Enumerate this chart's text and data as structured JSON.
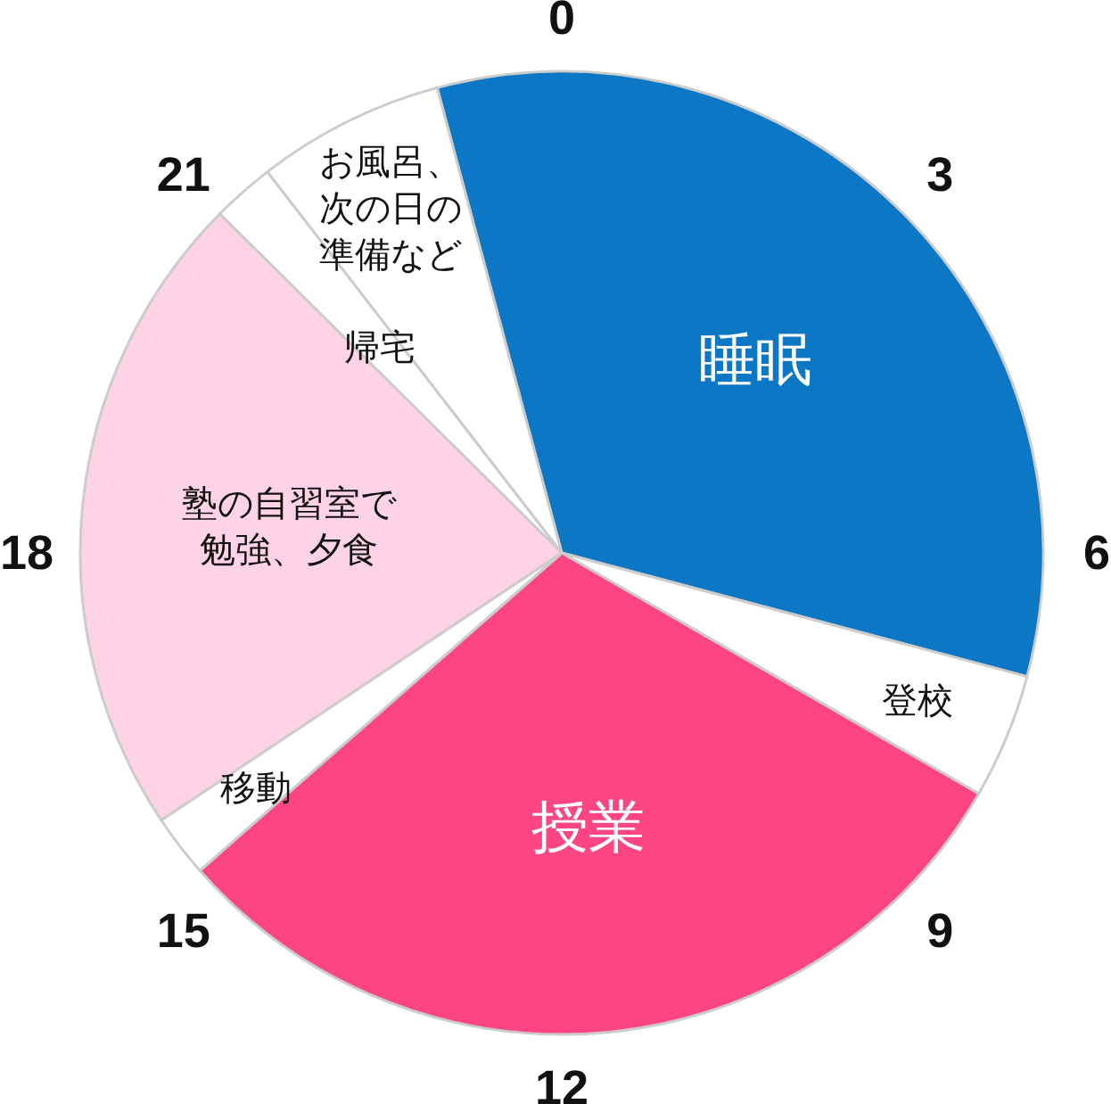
{
  "chart_data": {
    "type": "pie",
    "categories": [
      "睡眠",
      "登校",
      "授業",
      "移動",
      "塾の自習室で勉強、夕食",
      "帰宅",
      "お風呂、次の日の準備など"
    ],
    "values": [
      33.3,
      4.2,
      30.2,
      2.1,
      21.8,
      2.1,
      6.3
    ],
    "colors": [
      "#0c77c4",
      "#ffffff",
      "#fd4585",
      "#ffffff",
      "#fed3e6",
      "#ffffff",
      "#ffffff"
    ],
    "annotations": [
      "0",
      "3",
      "6",
      "9",
      "12",
      "15",
      "18",
      "21"
    ]
  }
}
